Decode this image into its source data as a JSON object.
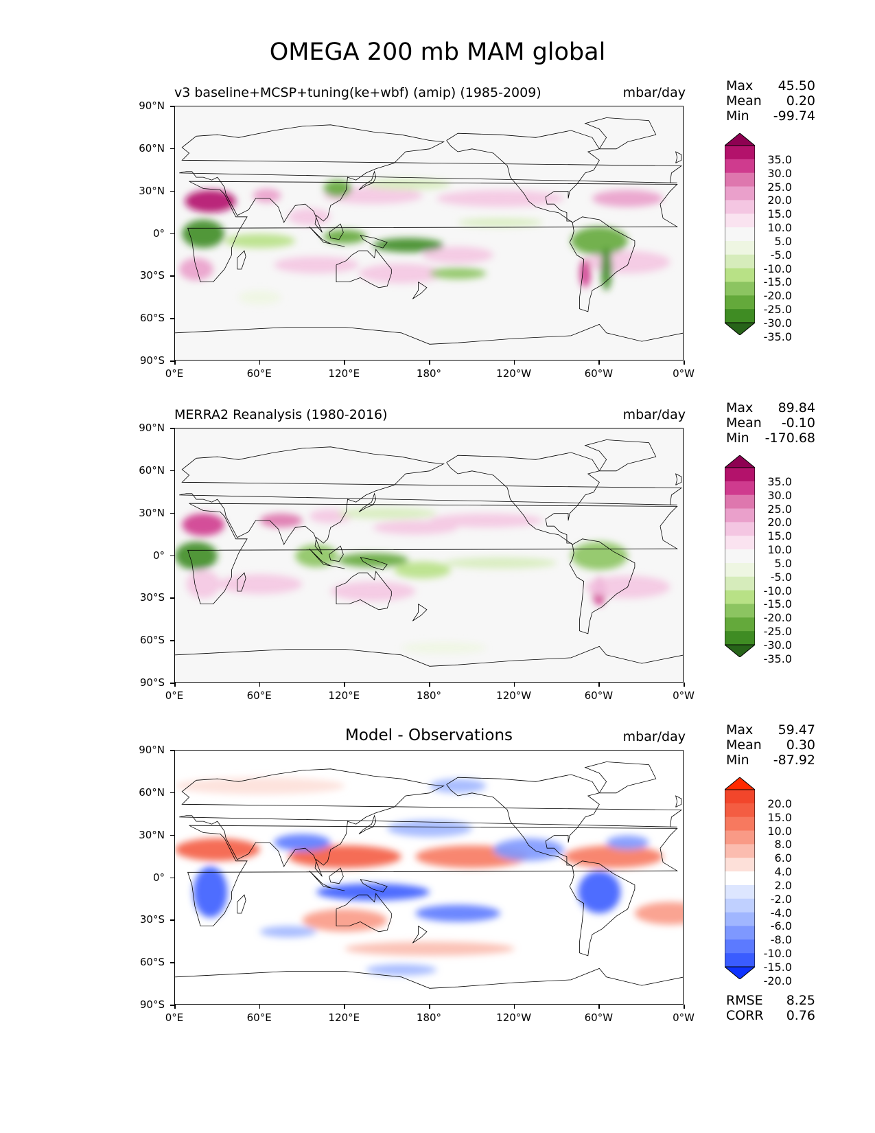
{
  "figure": {
    "title": "OMEGA 200 mb MAM global"
  },
  "axes": {
    "lat_labels": [
      "90°N",
      "60°N",
      "30°N",
      "0°",
      "30°S",
      "60°S",
      "90°S"
    ],
    "lon_labels": [
      "0°E",
      "60°E",
      "120°E",
      "180°",
      "120°W",
      "60°W",
      "0°W"
    ]
  },
  "panels": [
    {
      "id": "model",
      "title": "v3 baseline+MCSP+tuning(ke+wbf) (amip) (1985-2009)",
      "units": "mbar/day",
      "stats": {
        "max_label": "Max",
        "max": "45.50",
        "mean_label": "Mean",
        "mean": "0.20",
        "min_label": "Min",
        "min": "-99.74"
      },
      "colorbar": {
        "labels": [
          "35.0",
          "30.0",
          "25.0",
          "20.0",
          "15.0",
          "10.0",
          "5.0",
          "-5.0",
          "-10.0",
          "-15.0",
          "-20.0",
          "-25.0",
          "-30.0",
          "-35.0"
        ],
        "colors": [
          "#8e0152",
          "#b3126b",
          "#cf3b8e",
          "#de77ae",
          "#eaa0cb",
          "#f4c6e2",
          "#fae3f0",
          "#f7f7f7",
          "#eef6e2",
          "#d6ecbb",
          "#b8e186",
          "#8cc461",
          "#64a93b",
          "#3f8c23",
          "#276419"
        ]
      }
    },
    {
      "id": "obs",
      "title": "MERRA2 Reanalysis (1980-2016)",
      "units": "mbar/day",
      "stats": {
        "max_label": "Max",
        "max": "89.84",
        "mean_label": "Mean",
        "mean": "-0.10",
        "min_label": "Min",
        "min": "-170.68"
      },
      "colorbar": {
        "labels": [
          "35.0",
          "30.0",
          "25.0",
          "20.0",
          "15.0",
          "10.0",
          "5.0",
          "-5.0",
          "-10.0",
          "-15.0",
          "-20.0",
          "-25.0",
          "-30.0",
          "-35.0"
        ],
        "colors": [
          "#8e0152",
          "#b3126b",
          "#cf3b8e",
          "#de77ae",
          "#eaa0cb",
          "#f4c6e2",
          "#fae3f0",
          "#f7f7f7",
          "#eef6e2",
          "#d6ecbb",
          "#b8e186",
          "#8cc461",
          "#64a93b",
          "#3f8c23",
          "#276419"
        ]
      }
    },
    {
      "id": "diff",
      "title": "Model - Observations",
      "units": "mbar/day",
      "stats": {
        "max_label": "Max",
        "max": "59.47",
        "mean_label": "Mean",
        "mean": "0.30",
        "min_label": "Min",
        "min": "-87.92"
      },
      "extra": {
        "rmse_label": "RMSE",
        "rmse": "8.25",
        "corr_label": "CORR",
        "corr": "0.76"
      },
      "colorbar": {
        "labels": [
          "20.0",
          "15.0",
          "10.0",
          "8.0",
          "6.0",
          "4.0",
          "2.0",
          "-2.0",
          "-4.0",
          "-6.0",
          "-8.0",
          "-10.0",
          "-15.0",
          "-20.0"
        ],
        "colors": [
          "#ff2a00",
          "#f2462b",
          "#f45d42",
          "#f7795f",
          "#f99a86",
          "#fbbcaf",
          "#fde0d9",
          "#ffffff",
          "#dde6ff",
          "#c0d0ff",
          "#a0b6ff",
          "#7e98ff",
          "#5c7aff",
          "#3a5cff",
          "#0f33ff"
        ]
      }
    }
  ]
}
